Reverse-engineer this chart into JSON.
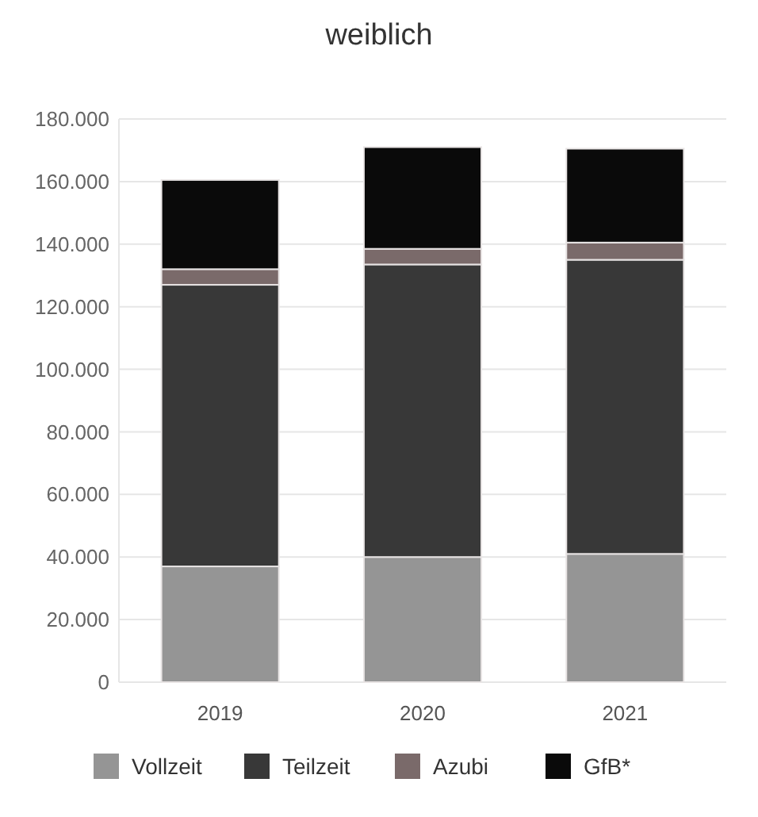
{
  "chart_data": {
    "type": "bar",
    "title": "weiblich",
    "categories": [
      "2019",
      "2020",
      "2021"
    ],
    "stacked": true,
    "series": [
      {
        "name": "Vollzeit",
        "color": "#959595",
        "values": [
          37000,
          40000,
          41000
        ]
      },
      {
        "name": "Teilzeit",
        "color": "#383838",
        "values": [
          90000,
          93500,
          94000
        ]
      },
      {
        "name": "Azubi",
        "color": "#7a6a6a",
        "values": [
          5000,
          5000,
          5500
        ]
      },
      {
        "name": "GfB*",
        "color": "#0a0a0a",
        "values": [
          28500,
          32500,
          30000
        ]
      }
    ],
    "ylim": [
      0,
      180000
    ],
    "yticks": [
      {
        "value": 0,
        "label": "0"
      },
      {
        "value": 20000,
        "label": "20.000"
      },
      {
        "value": 40000,
        "label": "40.000"
      },
      {
        "value": 60000,
        "label": "60.000"
      },
      {
        "value": 80000,
        "label": "80.000"
      },
      {
        "value": 100000,
        "label": "100.000"
      },
      {
        "value": 120000,
        "label": "120.000"
      },
      {
        "value": 140000,
        "label": "140.000"
      },
      {
        "value": 160000,
        "label": "160.000"
      },
      {
        "value": 180000,
        "label": "180.000"
      }
    ],
    "grid": "y",
    "legend": "bottom"
  }
}
